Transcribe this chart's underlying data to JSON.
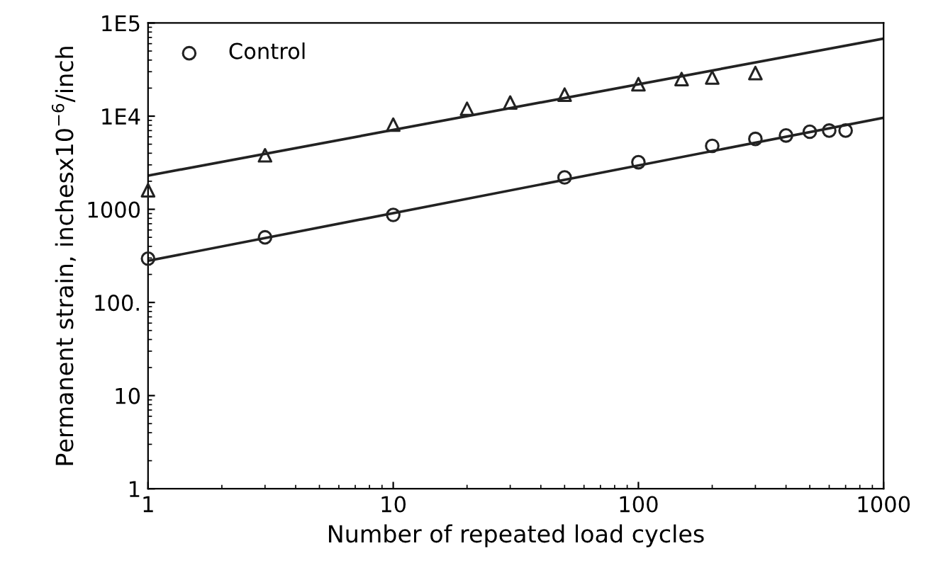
{
  "chart_data": {
    "type": "scatter",
    "xlabel": "Number of repeated load cycles",
    "ylabel": "Permanent strain, inchesx10$^{−6}$/inch",
    "log": "xy",
    "xlim": [
      1,
      1000
    ],
    "ylim": [
      1,
      100000
    ],
    "xticks": [
      1,
      10,
      100,
      1000
    ],
    "yticks": [
      1,
      10,
      {
        "value": 100,
        "label": "100."
      },
      1000,
      {
        "value": 10000,
        "label": "1E4"
      },
      {
        "value": 100000,
        "label": "1E5"
      }
    ],
    "grid": false,
    "legend": "top left",
    "series": [
      {
        "name": "Control",
        "color": "#222222",
        "marker": "circle",
        "x": [
          1,
          3,
          10,
          50,
          100,
          200,
          300,
          400,
          500,
          600,
          700
        ],
        "values": [
          295,
          500,
          870,
          2200,
          3200,
          4800,
          5700,
          6200,
          6800,
          7000,
          7000
        ]
      },
      {
        "color": "#222222",
        "marker": "triangle",
        "x": [
          1,
          3,
          10,
          20,
          30,
          50,
          100,
          150,
          200,
          300
        ],
        "values": [
          1600,
          3800,
          8100,
          12000,
          14000,
          17000,
          22000,
          25000,
          26000,
          29000
        ]
      },
      {
        "type": "line",
        "color": "#222222",
        "marker": "none",
        "x": [
          1,
          1000
        ],
        "values": [
          280,
          9600
        ]
      },
      {
        "type": "line",
        "color": "#222222",
        "marker": "none",
        "x": [
          1,
          1000
        ],
        "values": [
          2300,
          68000
        ]
      }
    ]
  }
}
